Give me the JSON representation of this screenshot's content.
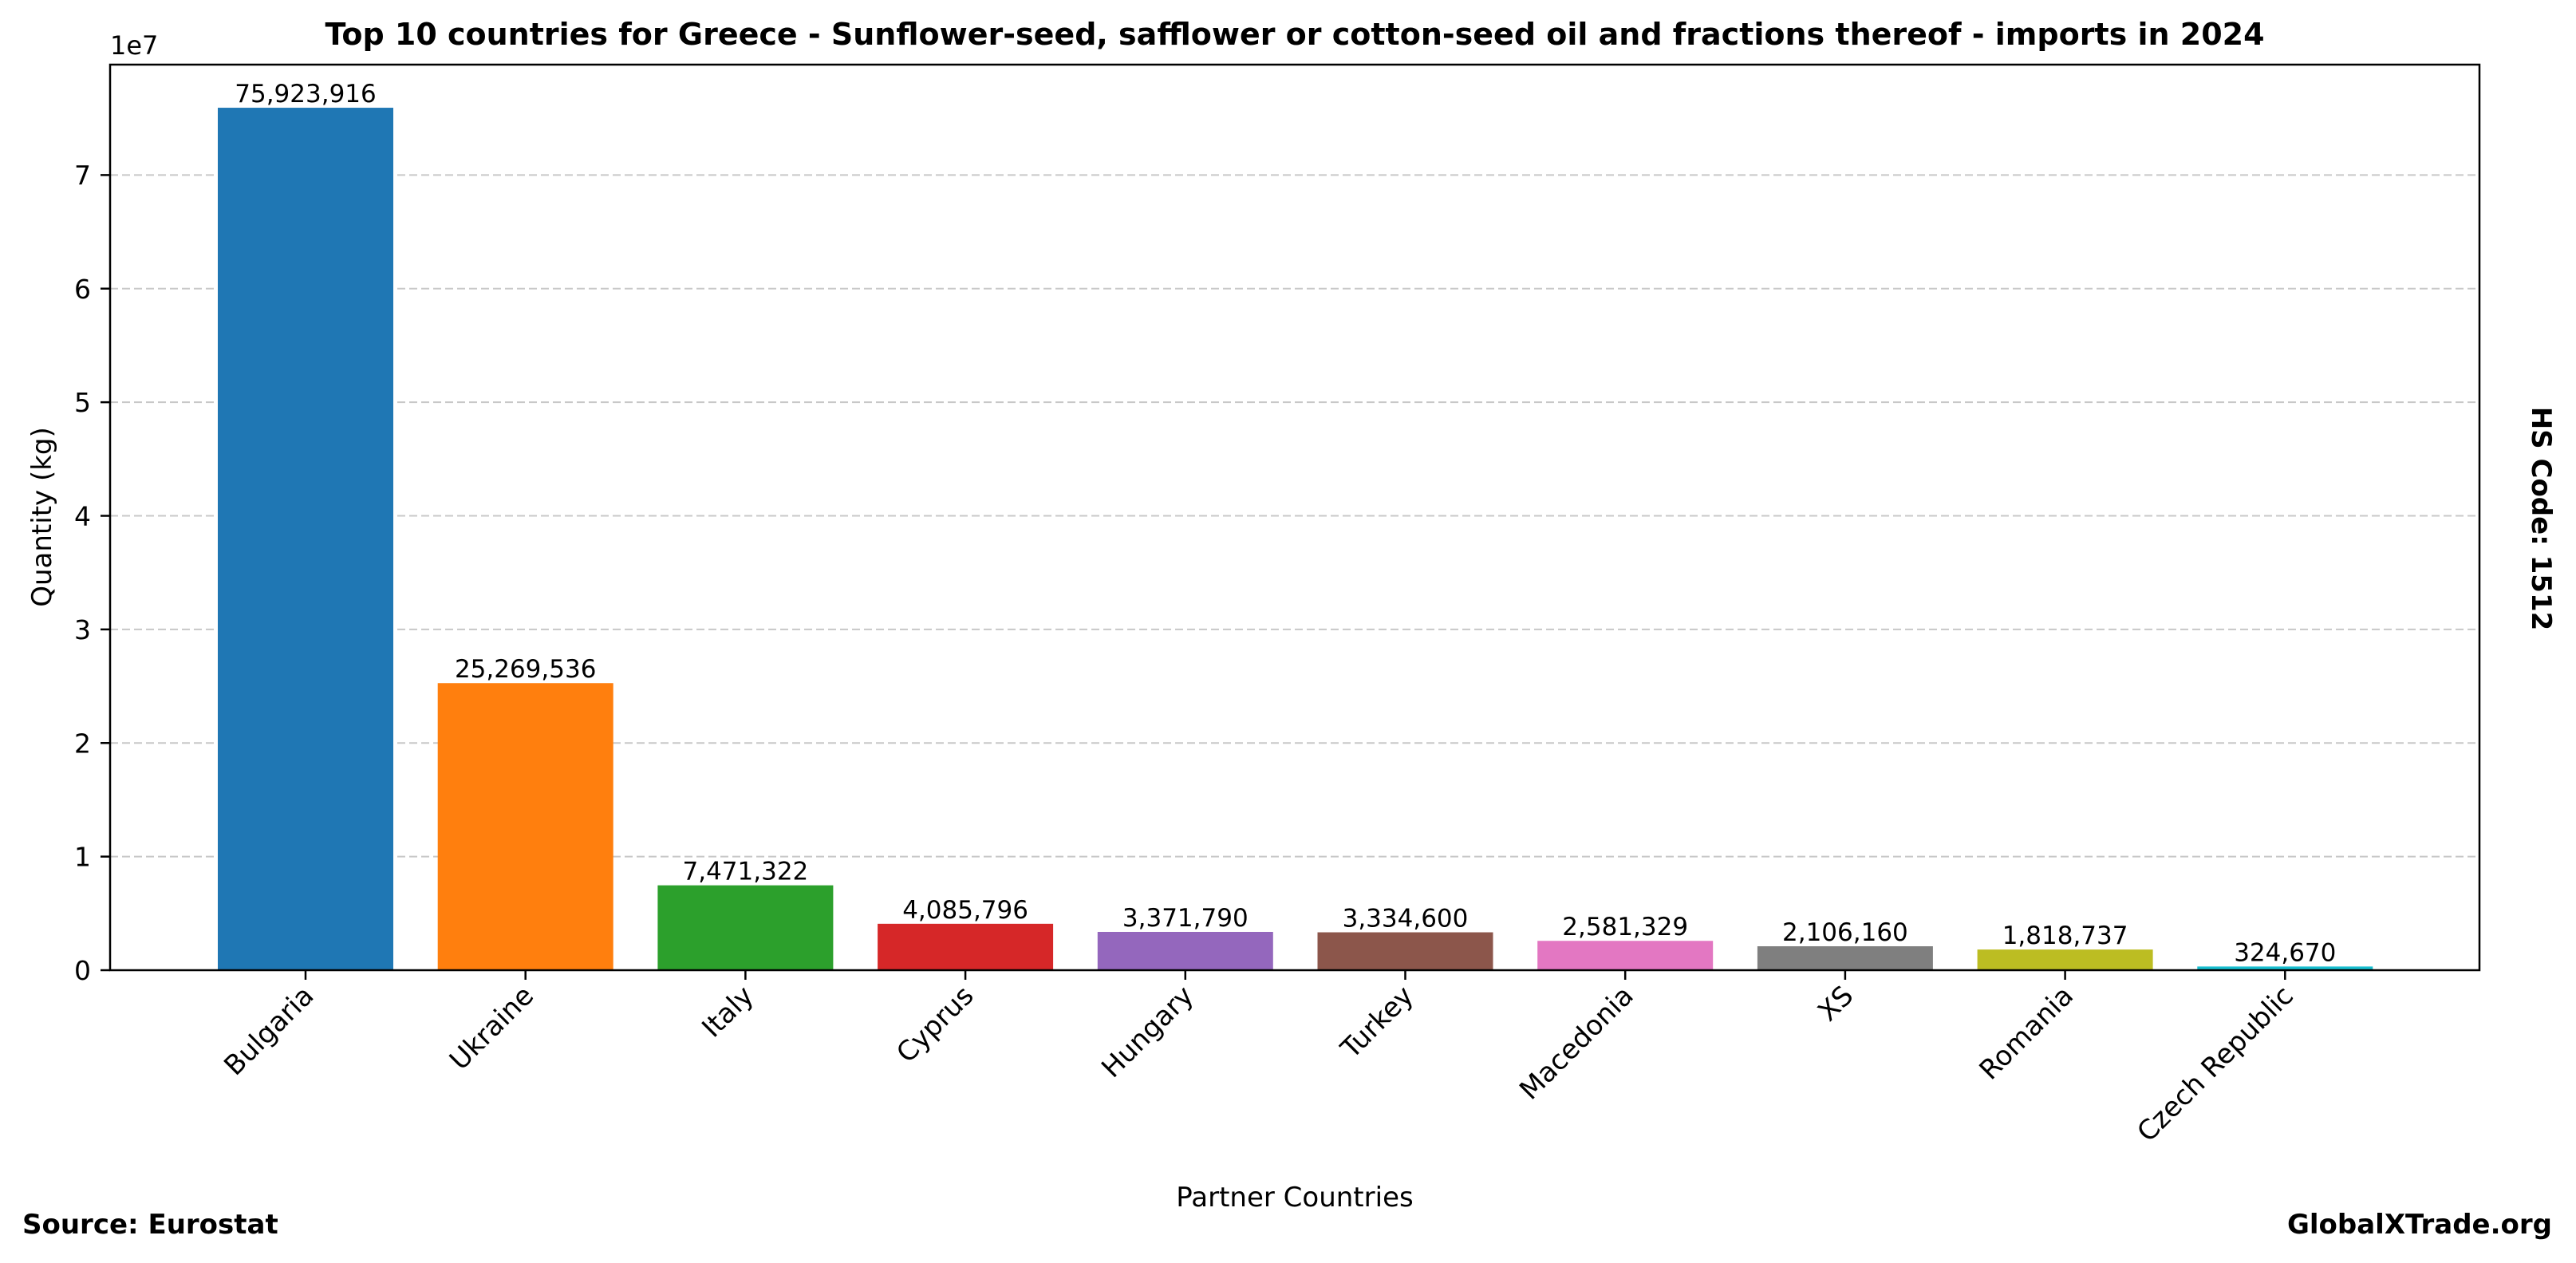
{
  "chart_data": {
    "type": "bar",
    "title": "Top 10 countries for Greece - Sunflower-seed, safflower or cotton-seed oil and fractions thereof - imports in 2024",
    "xlabel": "Partner Countries",
    "ylabel": "Quantity (kg)",
    "y_offset_label": "1e7",
    "side_label": "HS Code: 1512",
    "categories": [
      "Bulgaria",
      "Ukraine",
      "Italy",
      "Cyprus",
      "Hungary",
      "Turkey",
      "Macedonia",
      "XS",
      "Romania",
      "Czech Republic"
    ],
    "values": [
      75923916,
      25269536,
      7471322,
      4085796,
      3371790,
      3334600,
      2581329,
      2106160,
      1818737,
      324670
    ],
    "value_labels": [
      "75,923,916",
      "25,269,536",
      "7,471,322",
      "4,085,796",
      "3,371,790",
      "3,334,600",
      "2,581,329",
      "2,106,160",
      "1,818,737",
      "324,670"
    ],
    "colors": [
      "#1f77b4",
      "#ff7f0e",
      "#2ca02c",
      "#d62728",
      "#9467bd",
      "#8c564b",
      "#e377c2",
      "#7f7f7f",
      "#bcbd22",
      "#17becf"
    ],
    "y_ticks": [
      0,
      10000000,
      20000000,
      30000000,
      40000000,
      50000000,
      60000000,
      70000000
    ],
    "y_tick_labels": [
      "0",
      "1",
      "2",
      "3",
      "4",
      "5",
      "6",
      "7"
    ],
    "ylim": [
      0,
      79720112
    ],
    "grid": "y-dashed"
  },
  "footer": {
    "source": "Source: Eurostat",
    "site": "GlobalXTrade.org"
  }
}
